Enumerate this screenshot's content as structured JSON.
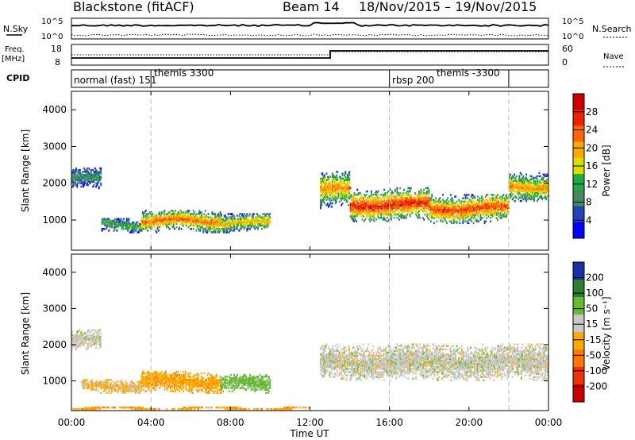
{
  "header": {
    "station": "Blackstone (fitACF)",
    "beam": "Beam 14",
    "date_range": "18/Nov/2015 – 19/Nov/2015"
  },
  "top_panels": {
    "nsky_label": "N.Sky",
    "nsky_ticks": [
      "10^5",
      "10^0"
    ],
    "nsearch_label": "N.Search",
    "nsearch_ticks": [
      "10^5",
      "10^0"
    ],
    "freq_label_1": "Freq.",
    "freq_label_2": "[MHz]",
    "freq_ticks": [
      "18",
      "8"
    ],
    "nave_label": "Nave",
    "nave_ticks": [
      "60",
      "0"
    ],
    "cpid_label": "CPID"
  },
  "cpid_labels": [
    {
      "text": "normal (fast) 151",
      "hour": 0
    },
    {
      "text": "themis 3300",
      "hour": 4
    },
    {
      "text": "rbsp 200",
      "hour": 16
    },
    {
      "text": "themis -3300",
      "hour": 18
    }
  ],
  "cpid_boundaries_h": [
    4,
    16,
    22
  ],
  "power_panel": {
    "ylabel": "Slant Range [km]",
    "colorbar_label": "Power [dB]",
    "colorbar_ticks": [
      "28",
      "24",
      "20",
      "16",
      "12",
      "8",
      "4"
    ]
  },
  "velocity_panel": {
    "ylabel": "Slant Range [km]",
    "colorbar_label": "Velocity [m s⁻¹]",
    "colorbar_ticks": [
      "200",
      "100",
      "50",
      "15",
      "-15",
      "-50",
      "-100",
      "-200"
    ]
  },
  "xaxis": {
    "label": "Time UT",
    "ticks": [
      "00:00",
      "04:00",
      "08:00",
      "12:00",
      "16:00",
      "20:00",
      "00:00"
    ]
  },
  "yaxis_ticks": [
    "4000",
    "3000",
    "2000",
    "1000"
  ],
  "colors": {
    "power_scale": [
      "#cc0000",
      "#ee2200",
      "#ff6600",
      "#ffaa00",
      "#dddd00",
      "#22aa44",
      "#448866",
      "#2244bb",
      "#0000ff"
    ],
    "velocity_scale": [
      "#1a2fa8",
      "#2e7d32",
      "#66bb33",
      "#c8c8c8",
      "#ffaa00",
      "#ff7700",
      "#ee3300",
      "#cc0000"
    ]
  },
  "chart_data": [
    {
      "type": "heatmap",
      "title": "Power [dB]",
      "xlabel": "Time UT",
      "ylabel": "Slant Range [km]",
      "x_range_h": [
        0,
        24
      ],
      "ylim": [
        180,
        4500
      ],
      "clim": [
        0,
        30
      ],
      "echo_bands": [
        {
          "t0": 1.5,
          "t1": 3.5,
          "peak_km": 850,
          "width_km": 200,
          "power_db": 12
        },
        {
          "t0": 3.5,
          "t1": 7.5,
          "peak_km": 950,
          "width_km": 300,
          "power_db": 22
        },
        {
          "t0": 7.5,
          "t1": 10.0,
          "peak_km": 900,
          "width_km": 250,
          "power_db": 18
        },
        {
          "t0": 12.5,
          "t1": 14.0,
          "peak_km": 1800,
          "width_km": 500,
          "power_db": 20
        },
        {
          "t0": 14.0,
          "t1": 18.0,
          "peak_km": 1400,
          "width_km": 450,
          "power_db": 26
        },
        {
          "t0": 18.0,
          "t1": 22.0,
          "peak_km": 1300,
          "width_km": 400,
          "power_db": 24
        },
        {
          "t0": 22.0,
          "t1": 24.0,
          "peak_km": 1900,
          "width_km": 400,
          "power_db": 20
        },
        {
          "t0": 0.0,
          "t1": 1.5,
          "peak_km": 2100,
          "width_km": 300,
          "power_db": 10
        }
      ]
    },
    {
      "type": "heatmap",
      "title": "Velocity [m s⁻¹]",
      "xlabel": "Time UT",
      "ylabel": "Slant Range [km]",
      "x_range_h": [
        0,
        24
      ],
      "ylim": [
        180,
        4500
      ],
      "clim": [
        -200,
        200
      ],
      "echo_bands": [
        {
          "t0": 0.0,
          "t1": 1.5,
          "peak_km": 2100,
          "width_km": 300,
          "velocity_ms": 0
        },
        {
          "t0": 0.5,
          "t1": 3.5,
          "peak_km": 850,
          "width_km": 200,
          "velocity_ms": -20
        },
        {
          "t0": 3.5,
          "t1": 7.5,
          "peak_km": 950,
          "width_km": 300,
          "velocity_ms": -45
        },
        {
          "t0": 7.5,
          "t1": 10.0,
          "peak_km": 900,
          "width_km": 250,
          "velocity_ms": 30
        },
        {
          "t0": 12.5,
          "t1": 24.0,
          "peak_km": 1500,
          "width_km": 500,
          "velocity_ms": 0
        },
        {
          "t0": 0.0,
          "t1": 12.0,
          "peak_km": 220,
          "width_km": 60,
          "velocity_ms": -50
        }
      ]
    }
  ]
}
